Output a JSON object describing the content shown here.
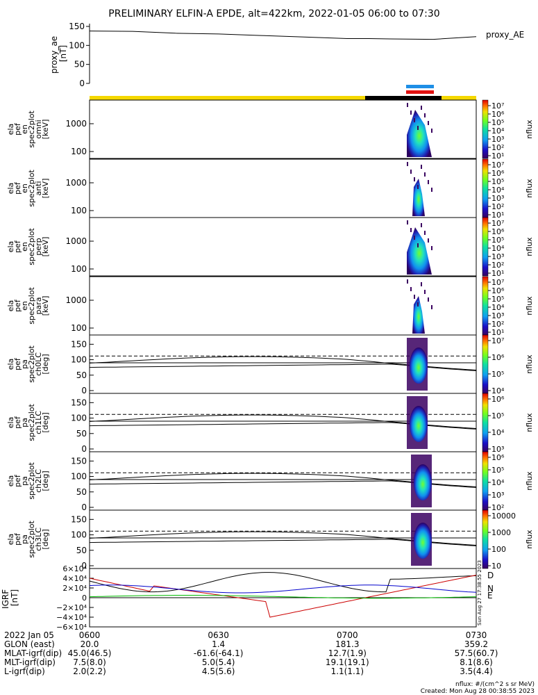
{
  "title": "PRELIMINARY ELFIN-A EPDE, alt=422km, 2022-01-05 06:00 to 07:30",
  "time_labels": [
    "0600",
    "0630",
    "0700",
    "0730"
  ],
  "colors": {
    "line": "#000000",
    "state_bar_yellow": "#f5d800",
    "state_bar_black": "#000000",
    "marker_blue": "#1e8fe6",
    "marker_red": "#e01010",
    "grf_d": "#cc0000",
    "grf_n": "#0000cc",
    "grf_e": "#00bb00",
    "grf_total": "#000000"
  },
  "chart_data": [
    {
      "type": "line",
      "ylabel": "proxy_ae\n[nT]",
      "legend": "proxy_AE",
      "yticks": [
        "150",
        "100",
        "50",
        "0"
      ],
      "ylim": [
        0,
        150
      ],
      "series": [
        {
          "name": "proxy_AE",
          "x_min": [
            0,
            10,
            20,
            30,
            40,
            50,
            60,
            65,
            70,
            80,
            90
          ],
          "values": [
            138,
            137,
            132,
            130,
            126,
            122,
            118,
            118,
            117,
            116,
            123
          ]
        }
      ]
    },
    {
      "type": "heatmap",
      "panels": [
        {
          "ylabel": "ela\npef\nen\nspec2plot\nomni\n[keV]",
          "yticks": [
            "1000",
            "100"
          ]
        },
        {
          "ylabel": "ela\npef\nen\nspec2plot\nanti\n[keV]",
          "yticks": [
            "1000",
            "100"
          ]
        },
        {
          "ylabel": "ela\npef\nen\nspec2plot\nperp\n[keV]",
          "yticks": [
            "1000",
            "100"
          ]
        },
        {
          "ylabel": "ela\npef\nen\nspec2plot\npara\n[keV]",
          "yticks": [
            "1000",
            "100"
          ]
        }
      ],
      "colorbar": {
        "label": "nflux",
        "ticks": [
          "10⁷",
          "10⁶",
          "10⁵",
          "10⁴",
          "10³",
          "10²",
          "10¹"
        ]
      }
    },
    {
      "type": "heatmap",
      "panels": [
        {
          "ylabel": "ela\npef\npa\nspec2plot\nch0LC\n[deg]",
          "yticks": [
            "150",
            "100",
            "50",
            "0"
          ],
          "colorbar_ticks": [
            "10⁷",
            "10⁶",
            "10⁵",
            "10⁴"
          ]
        },
        {
          "ylabel": "ela\npef\npa\nspec2plot\nch1LC\n[deg]",
          "yticks": [
            "150",
            "100",
            "50",
            "0"
          ],
          "colorbar_ticks": [
            "10⁶",
            "10⁵",
            "10⁴",
            "10³"
          ]
        },
        {
          "ylabel": "ela\npef\npa\nspec2plot\nch2LC\n[deg]",
          "yticks": [
            "150",
            "100",
            "50",
            "0"
          ],
          "colorbar_ticks": [
            "10⁶",
            "10⁵",
            "10⁴",
            "10³",
            "10²"
          ]
        },
        {
          "ylabel": "ela\npef\npa\nspec2plot\nch3LC\n[deg]",
          "yticks": [
            "150",
            "100",
            "50",
            "0"
          ],
          "colorbar_ticks": [
            "10000",
            "1000",
            "100",
            "10"
          ]
        }
      ],
      "colorbar": {
        "label": "nflux"
      }
    },
    {
      "type": "line",
      "ylabel": "IGRF\n[nT]",
      "yticks": [
        "6×10⁴",
        "4×10⁴",
        "2×10⁴",
        "0",
        "−2×10⁴",
        "−4×10⁴",
        "−6×10⁴"
      ],
      "ylim": [
        -60000,
        60000
      ],
      "legend": [
        "D",
        "N",
        "E"
      ],
      "side_note": "Sun Aug 27 17:38:55 2023"
    }
  ],
  "ephemeris": {
    "rows": [
      {
        "label": "2022 Jan 05",
        "v0": "0600",
        "v1": "0630",
        "v2": "0700",
        "v3": "0730"
      },
      {
        "label": "GLON (east)",
        "v0": "20.0",
        "v1": "1.4",
        "v2": "181.3",
        "v3": "359.2"
      },
      {
        "label": "MLAT-igrf(dip)",
        "v0": "45.0(46.5)",
        "v1": "-61.6(-64.1)",
        "v2": "12.7(1.9)",
        "v3": "57.5(60.7)"
      },
      {
        "label": "MLT-igrf(dip)",
        "v0": "7.5(8.0)",
        "v1": "5.0(5.4)",
        "v2": "19.1(19.1)",
        "v3": "8.1(8.6)"
      },
      {
        "label": "L-igrf(dip)",
        "v0": "2.0(2.2)",
        "v1": "4.5(5.6)",
        "v2": "1.1(1.1)",
        "v3": "3.5(4.4)"
      }
    ]
  },
  "footer": {
    "units": "nflux: #/(cm^2 s sr MeV)",
    "created": "Created: Mon Aug 28 00:38:55 2023"
  }
}
